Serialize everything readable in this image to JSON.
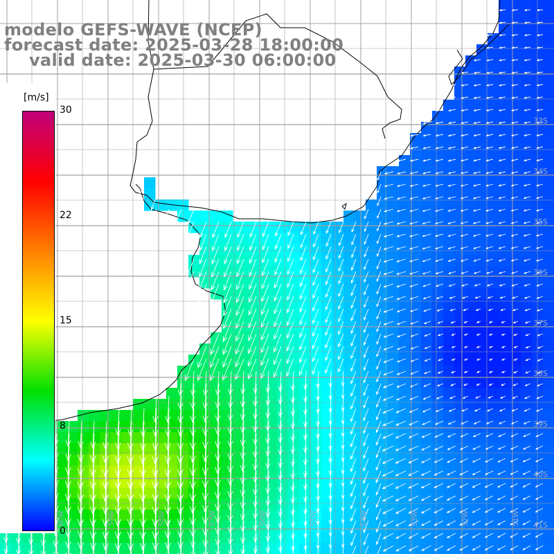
{
  "title": {
    "model": "modelo GEFS-WAVE (NCEP)",
    "forecast": "forecast date: 2025-03-28 18:00:00",
    "valid": "valid date: 2025-03-30 06:00:00"
  },
  "colorbar": {
    "unit": "[m/s]",
    "ticks": [
      "30",
      "22",
      "15",
      "8",
      "0"
    ],
    "tick_values": [
      30,
      22,
      15,
      8,
      0
    ],
    "colors": [
      "#c0007c",
      "#ff0000",
      "#ff8000",
      "#ffff00",
      "#00e000",
      "#00ffff",
      "#0000ff"
    ]
  },
  "grid": {
    "lat_labels": [
      "33S",
      "34S",
      "35S",
      "36S",
      "37S",
      "38S",
      "39S",
      "40S",
      "41S"
    ],
    "lon_labels": [
      "61W",
      "60W",
      "59W",
      "58W",
      "57W",
      "56W",
      "55W",
      "54W",
      "53W",
      "52W",
      "51W"
    ]
  },
  "colors": {
    "land": "#ffffff",
    "coast": "#000000",
    "grid": "#a0a0a0",
    "arrow": "#ffffff"
  }
}
